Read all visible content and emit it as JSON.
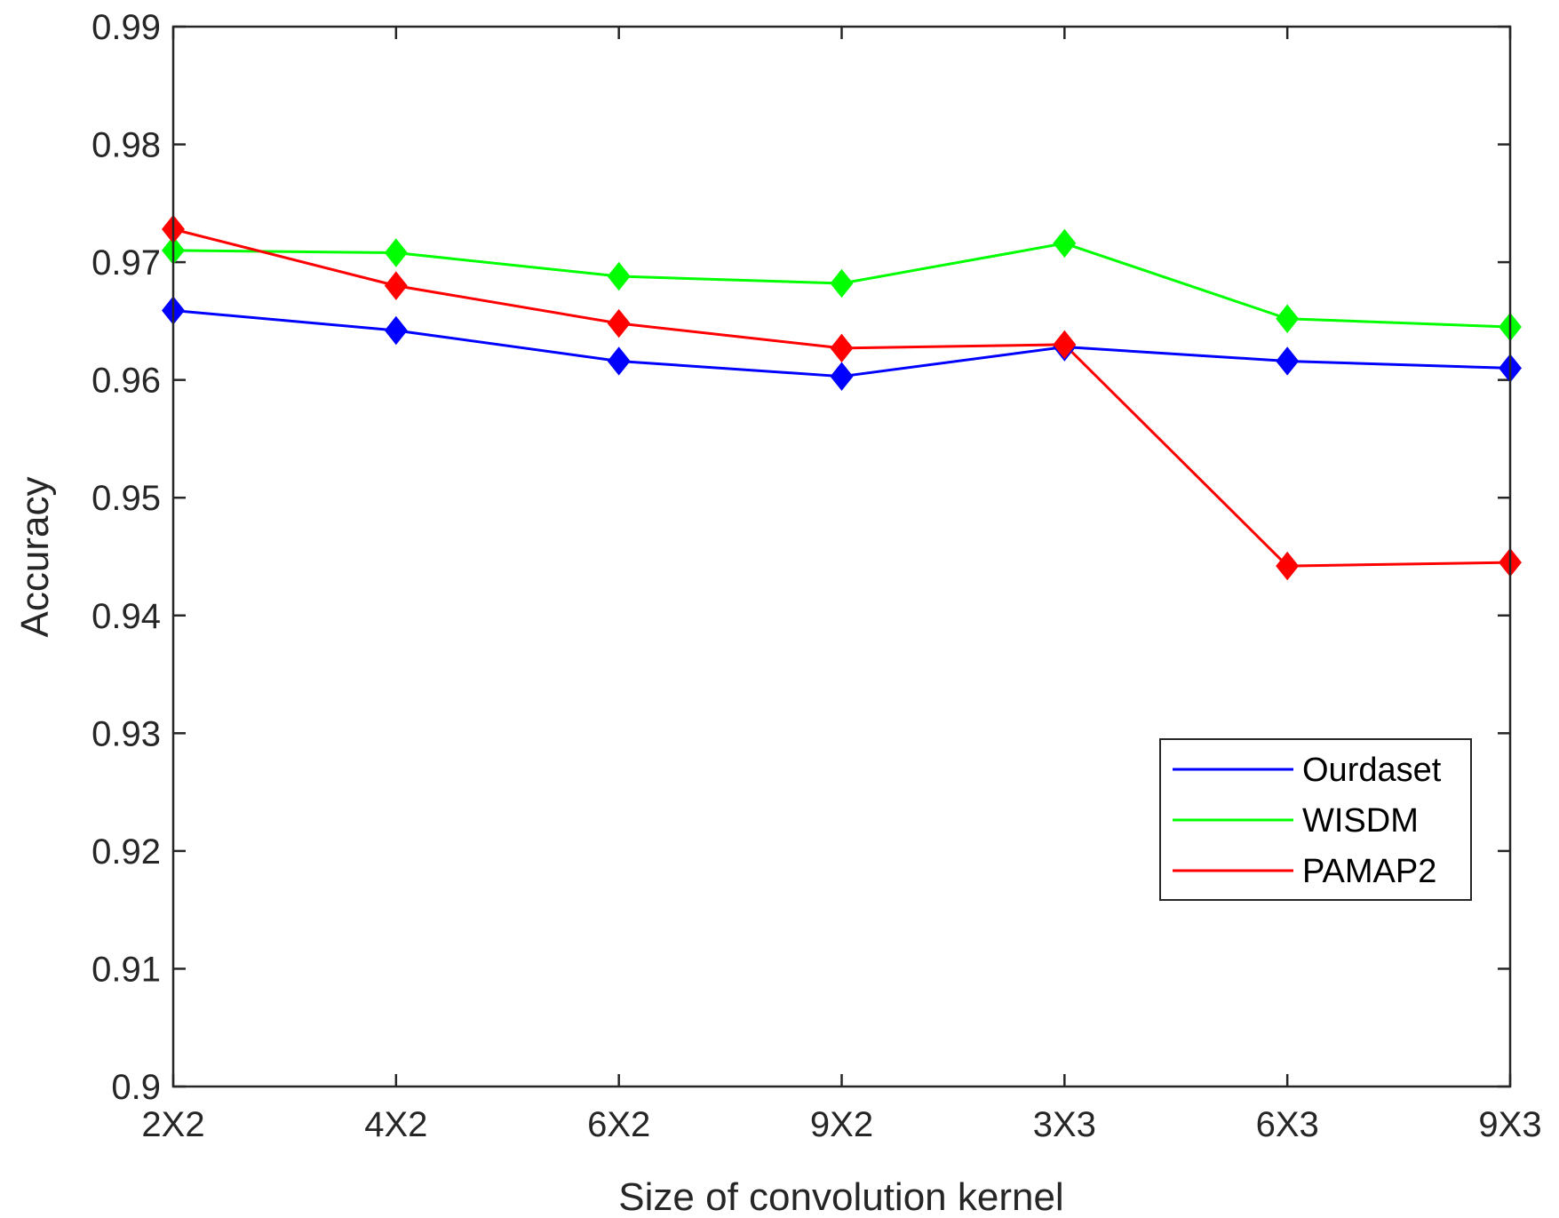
{
  "chart_data": {
    "type": "line",
    "title": "",
    "xlabel": "Size of convolution kernel",
    "ylabel": "Accuracy",
    "categories": [
      "2X2",
      "4X2",
      "6X2",
      "9X2",
      "3X3",
      "6X3",
      "9X3"
    ],
    "ylim": [
      0.9,
      0.99
    ],
    "yticks": [
      0.9,
      0.91,
      0.92,
      0.93,
      0.94,
      0.95,
      0.96,
      0.97,
      0.98,
      0.99
    ],
    "ytick_labels": [
      "0.9",
      "0.91",
      "0.92",
      "0.93",
      "0.94",
      "0.95",
      "0.96",
      "0.97",
      "0.98",
      "0.99"
    ],
    "grid": false,
    "legend_position": "bottom-right",
    "series": [
      {
        "name": "Ourdaset",
        "color": "#0000ff",
        "marker": "diamond",
        "values": [
          0.9659,
          0.9642,
          0.9616,
          0.9603,
          0.9628,
          0.9616,
          0.961
        ]
      },
      {
        "name": "WISDM",
        "color": "#00ff00",
        "marker": "diamond",
        "values": [
          0.971,
          0.9708,
          0.9688,
          0.9682,
          0.9716,
          0.9652,
          0.9645
        ]
      },
      {
        "name": "PAMAP2",
        "color": "#ff0000",
        "marker": "diamond",
        "values": [
          0.9728,
          0.968,
          0.9648,
          0.9627,
          0.963,
          0.9442,
          0.9445
        ]
      }
    ]
  }
}
